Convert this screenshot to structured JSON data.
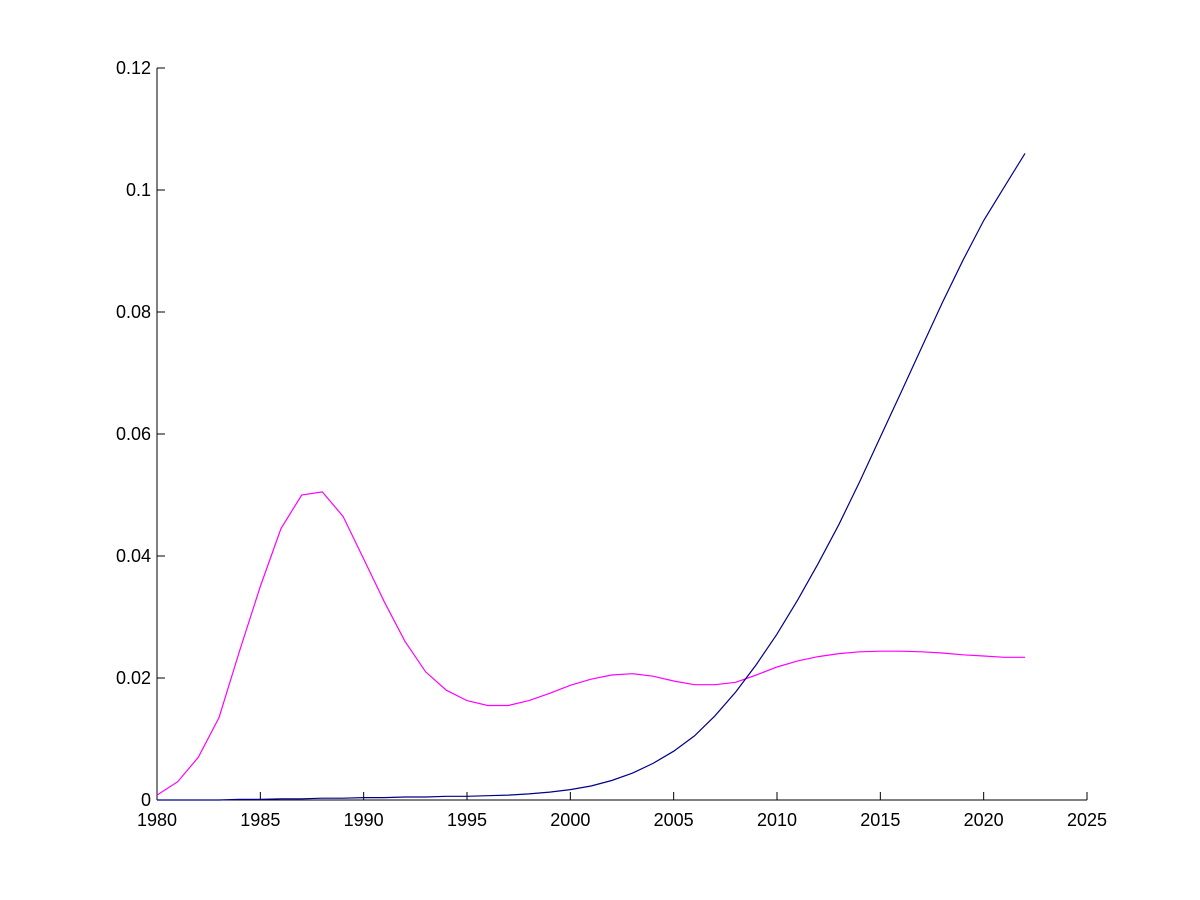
{
  "chart_data": {
    "type": "line",
    "title": "",
    "xlabel": "",
    "ylabel": "",
    "xlim": [
      1980,
      2025
    ],
    "ylim": [
      0,
      0.12
    ],
    "x_ticks": [
      1980,
      1985,
      1990,
      1995,
      2000,
      2005,
      2010,
      2015,
      2020,
      2025
    ],
    "y_ticks": [
      0,
      0.02,
      0.04,
      0.06,
      0.08,
      0.1,
      0.12
    ],
    "x_tick_labels": [
      "1980",
      "1985",
      "1990",
      "1995",
      "2000",
      "2005",
      "2010",
      "2015",
      "2020",
      "2025"
    ],
    "y_tick_labels": [
      "0",
      "0.02",
      "0.04",
      "0.06",
      "0.08",
      "0.1",
      "0.12"
    ],
    "grid": false,
    "legend": "none",
    "series": [
      {
        "color": "#ff00ff",
        "x": [
          1980,
          1981,
          1982,
          1983,
          1984,
          1985,
          1986,
          1987,
          1988,
          1989,
          1990,
          1991,
          1992,
          1993,
          1994,
          1995,
          1996,
          1997,
          1998,
          1999,
          2000,
          2001,
          2002,
          2003,
          2004,
          2005,
          2006,
          2007,
          2008,
          2009,
          2010,
          2011,
          2012,
          2013,
          2014,
          2015,
          2016,
          2017,
          2018,
          2019,
          2020,
          2021,
          2022
        ],
        "y": [
          0.0008,
          0.003,
          0.007,
          0.0135,
          0.0245,
          0.035,
          0.0445,
          0.05,
          0.0505,
          0.0465,
          0.0395,
          0.0325,
          0.026,
          0.021,
          0.018,
          0.0163,
          0.0155,
          0.0155,
          0.0163,
          0.0175,
          0.0188,
          0.0198,
          0.0205,
          0.0207,
          0.0203,
          0.0195,
          0.0189,
          0.0189,
          0.0193,
          0.0205,
          0.0218,
          0.0228,
          0.0235,
          0.024,
          0.0243,
          0.0244,
          0.0244,
          0.0243,
          0.0241,
          0.0238,
          0.0236,
          0.0234,
          0.0234
        ]
      },
      {
        "color": "#00008b",
        "x": [
          1980,
          1981,
          1982,
          1983,
          1984,
          1985,
          1986,
          1987,
          1988,
          1989,
          1990,
          1991,
          1992,
          1993,
          1994,
          1995,
          1996,
          1997,
          1998,
          1999,
          2000,
          2001,
          2002,
          2003,
          2004,
          2005,
          2006,
          2007,
          2008,
          2009,
          2010,
          2011,
          2012,
          2013,
          2014,
          2015,
          2016,
          2017,
          2018,
          2019,
          2020,
          2021,
          2022
        ],
        "y": [
          0,
          0,
          0,
          0,
          0.0001,
          0.0001,
          0.0002,
          0.0002,
          0.0003,
          0.0003,
          0.0004,
          0.0004,
          0.0005,
          0.0005,
          0.0006,
          0.0006,
          0.0007,
          0.0008,
          0.001,
          0.0013,
          0.0017,
          0.0023,
          0.0032,
          0.0044,
          0.006,
          0.008,
          0.0105,
          0.0138,
          0.0177,
          0.0222,
          0.0272,
          0.0328,
          0.0388,
          0.0452,
          0.0522,
          0.0595,
          0.0668,
          0.0742,
          0.0815,
          0.0885,
          0.095,
          0.1005,
          0.106
        ]
      }
    ]
  }
}
